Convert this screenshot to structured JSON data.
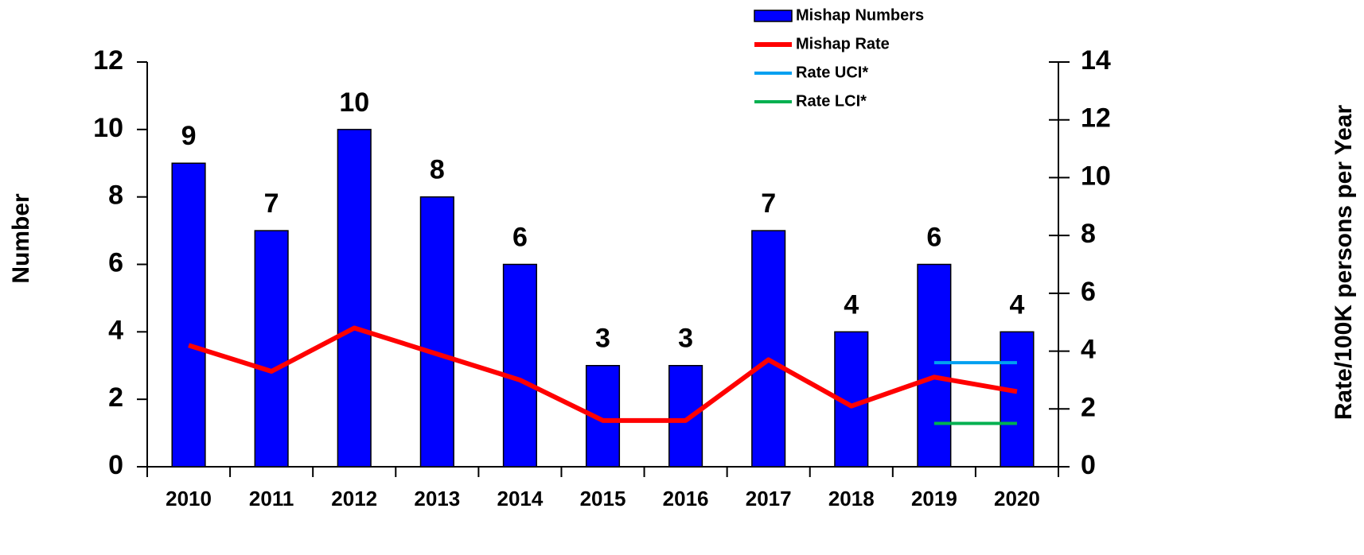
{
  "chart_data": {
    "type": "bar",
    "categories": [
      "2010",
      "2011",
      "2012",
      "2013",
      "2014",
      "2015",
      "2016",
      "2017",
      "2018",
      "2019",
      "2020"
    ],
    "ylabel": "Number",
    "y2label": "Rate/100K persons per Year",
    "ylim": [
      0,
      12
    ],
    "yticks": [
      0,
      2,
      4,
      6,
      8,
      10,
      12
    ],
    "y2lim": [
      0,
      14
    ],
    "y2ticks": [
      0,
      2,
      4,
      6,
      8,
      10,
      12,
      14
    ],
    "series": [
      {
        "name": "Mishap Numbers",
        "type": "bar",
        "color": "#0000ff",
        "values": [
          9,
          7,
          10,
          8,
          6,
          3,
          3,
          7,
          4,
          6,
          4
        ]
      },
      {
        "name": "Mishap Rate",
        "type": "line",
        "axis": "y2",
        "color": "#ff0000",
        "values": [
          4.2,
          3.3,
          4.8,
          3.9,
          3.0,
          1.6,
          1.6,
          3.7,
          2.1,
          3.1,
          2.6
        ]
      },
      {
        "name": "Rate UCI*",
        "type": "line",
        "axis": "y2",
        "color": "#00a0f0",
        "values": [
          null,
          null,
          null,
          null,
          null,
          null,
          null,
          null,
          null,
          3.6,
          3.6
        ]
      },
      {
        "name": "Rate LCI*",
        "type": "line",
        "axis": "y2",
        "color": "#00b050",
        "values": [
          null,
          null,
          null,
          null,
          null,
          null,
          null,
          null,
          null,
          1.5,
          1.5
        ]
      }
    ]
  }
}
